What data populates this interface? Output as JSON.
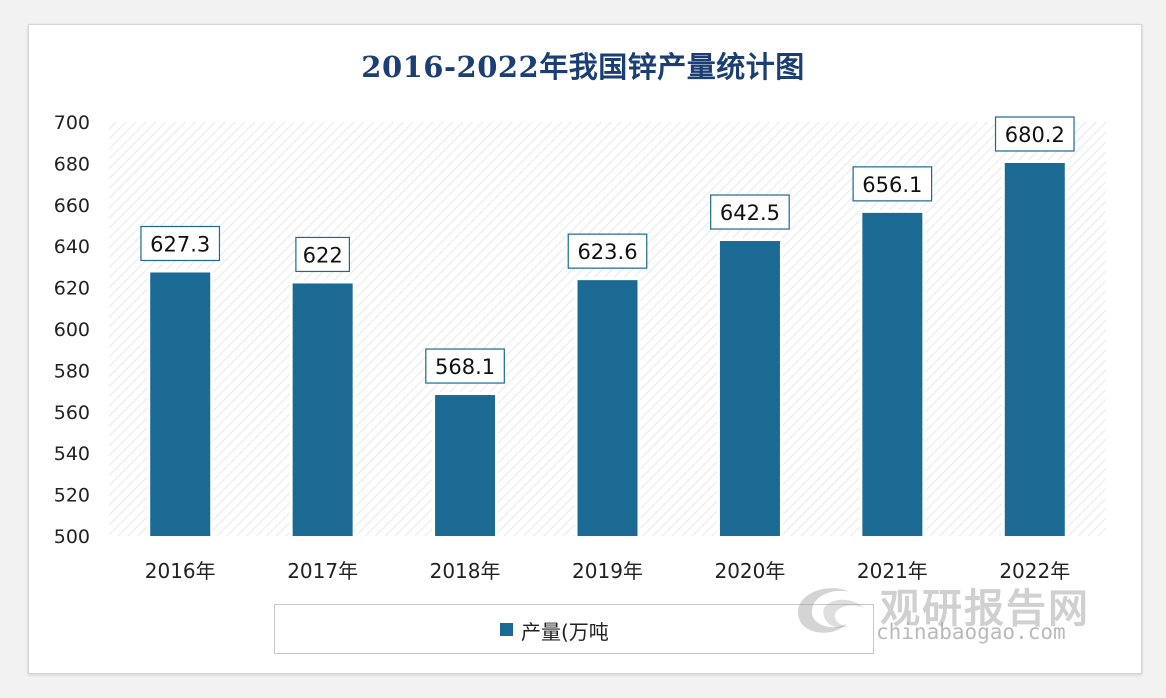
{
  "colors": {
    "bar": "#1a6a93",
    "title": "#1b3f73",
    "label_border": "#1a6a93"
  },
  "chart_data": {
    "type": "bar",
    "title": "2016-2022年我国锌产量统计图",
    "categories": [
      "2016年",
      "2017年",
      "2018年",
      "2019年",
      "2020年",
      "2021年",
      "2022年"
    ],
    "series": [
      {
        "name": "产量(万吨",
        "values": [
          627.3,
          622,
          568.1,
          623.6,
          642.5,
          656.1,
          680.2
        ]
      }
    ],
    "data_labels": [
      "627.3",
      "622",
      "568.1",
      "623.6",
      "642.5",
      "656.1",
      "680.2"
    ],
    "ylim": [
      500,
      700
    ],
    "yticks": [
      500,
      520,
      540,
      560,
      580,
      600,
      620,
      640,
      660,
      680,
      700
    ],
    "xlabel": "",
    "ylabel": "",
    "legend": "bottom",
    "grid": false
  },
  "watermark": {
    "cn": "观研报告网",
    "en": "chinabaogao.com",
    "icon": "swirl-logo-icon"
  }
}
